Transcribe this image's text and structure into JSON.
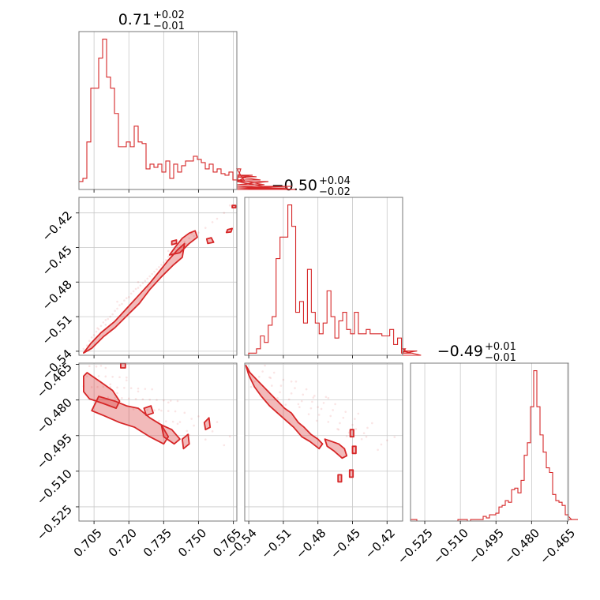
{
  "chart_data": {
    "type": "corner",
    "color": "#d62728",
    "grid": true,
    "parameters": [
      {
        "title_median": "0.71",
        "title_plus": "+0.02",
        "title_minus": "−0.01",
        "range": [
          0.6985,
          0.7665
        ],
        "ticks": [
          0.705,
          0.72,
          0.735,
          0.75,
          0.765
        ],
        "tick_labels": [
          "0.705",
          "0.720",
          "0.735",
          "0.750",
          "0.765"
        ],
        "hist_edges_start": 0.6985,
        "hist_bin_width": 0.0017,
        "hist_counts": [
          5,
          7,
          30,
          64,
          64,
          83,
          95,
          71,
          64,
          48,
          27,
          27,
          30,
          27,
          40,
          30,
          29,
          13,
          16,
          14,
          16,
          11,
          18,
          7,
          16,
          11,
          15,
          18,
          18,
          21,
          19,
          17,
          13,
          16,
          11,
          13,
          10,
          9,
          11,
          6,
          5,
          13,
          5,
          9,
          9,
          8,
          6,
          3,
          5,
          1,
          0,
          1,
          0,
          1,
          2,
          0
        ]
      },
      {
        "title_median": "−0.50",
        "title_plus": "+0.04",
        "title_minus": "−0.02",
        "range": [
          -0.5435,
          -0.4065
        ],
        "ticks": [
          -0.54,
          -0.51,
          -0.48,
          -0.45,
          -0.42
        ],
        "tick_labels": [
          "−0.54",
          "−0.51",
          "−0.48",
          "−0.45",
          "−0.42"
        ],
        "hist_edges_start": -0.5435,
        "hist_bin_width": 0.0034,
        "hist_counts": [
          0,
          1,
          1,
          3,
          9,
          6,
          14,
          18,
          45,
          55,
          55,
          70,
          60,
          20,
          25,
          15,
          40,
          20,
          15,
          10,
          15,
          30,
          18,
          8,
          16,
          20,
          12,
          10,
          20,
          10,
          10,
          12,
          10,
          10,
          10,
          9,
          9,
          12,
          5,
          8,
          1,
          3,
          1,
          1,
          2,
          0
        ]
      },
      {
        "title_median": "−0.49",
        "title_plus": "+0.01",
        "title_minus": "−0.01",
        "range": [
          -0.531,
          -0.4645
        ],
        "ticks": [
          -0.525,
          -0.51,
          -0.495,
          -0.48,
          -0.465
        ],
        "tick_labels": [
          "−0.525",
          "−0.510",
          "−0.495",
          "−0.480",
          "−0.465"
        ],
        "hist_edges_start": -0.531,
        "hist_bin_width": 0.00133,
        "hist_counts": [
          1,
          1,
          0,
          0,
          0,
          0,
          0,
          0,
          0,
          0,
          0,
          0,
          0,
          0,
          0,
          1,
          1,
          1,
          0,
          1,
          1,
          1,
          1,
          3,
          2,
          4,
          4,
          5,
          9,
          10,
          13,
          12,
          20,
          21,
          18,
          26,
          42,
          50,
          73,
          96,
          73,
          55,
          44,
          34,
          31,
          17,
          13,
          12,
          10,
          4,
          3,
          1,
          1,
          1
        ]
      }
    ],
    "scatter_samples": [
      [
        0.7005,
        -0.538
      ],
      [
        0.702,
        -0.535
      ],
      [
        0.703,
        -0.531
      ],
      [
        0.704,
        -0.528
      ],
      [
        0.705,
        -0.526
      ],
      [
        0.706,
        -0.523
      ],
      [
        0.7065,
        -0.52
      ],
      [
        0.707,
        -0.521
      ],
      [
        0.708,
        -0.518
      ],
      [
        0.709,
        -0.515
      ],
      [
        0.71,
        -0.513
      ],
      [
        0.711,
        -0.512
      ],
      [
        0.712,
        -0.51
      ],
      [
        0.713,
        -0.508
      ],
      [
        0.714,
        -0.505
      ],
      [
        0.715,
        -0.503
      ],
      [
        0.716,
        -0.5
      ],
      [
        0.717,
        -0.499
      ],
      [
        0.718,
        -0.496
      ],
      [
        0.719,
        -0.494
      ],
      [
        0.72,
        -0.493
      ],
      [
        0.721,
        -0.49
      ],
      [
        0.722,
        -0.488
      ],
      [
        0.723,
        -0.486
      ],
      [
        0.724,
        -0.485
      ],
      [
        0.725,
        -0.483
      ],
      [
        0.726,
        -0.481
      ],
      [
        0.727,
        -0.479
      ],
      [
        0.728,
        -0.477
      ],
      [
        0.729,
        -0.475
      ],
      [
        0.73,
        -0.473
      ],
      [
        0.731,
        -0.471
      ],
      [
        0.732,
        -0.469
      ],
      [
        0.733,
        -0.467
      ],
      [
        0.734,
        -0.465
      ],
      [
        0.735,
        -0.463
      ],
      [
        0.736,
        -0.461
      ],
      [
        0.737,
        -0.458
      ],
      [
        0.738,
        -0.456
      ],
      [
        0.739,
        -0.455
      ],
      [
        0.74,
        -0.452
      ],
      [
        0.741,
        -0.45
      ],
      [
        0.742,
        -0.448
      ],
      [
        0.744,
        -0.445
      ],
      [
        0.746,
        -0.442
      ],
      [
        0.748,
        -0.44
      ],
      [
        0.75,
        -0.437
      ],
      [
        0.753,
        -0.433
      ],
      [
        0.756,
        -0.428
      ],
      [
        0.758,
        -0.425
      ],
      [
        0.761,
        -0.42
      ],
      [
        0.7635,
        -0.4135
      ],
      [
        0.71,
        -0.517
      ],
      [
        0.715,
        -0.497
      ],
      [
        0.724,
        -0.48
      ],
      [
        0.728,
        -0.484
      ],
      [
        0.733,
        -0.471
      ],
      [
        0.737,
        -0.453
      ],
      [
        0.745,
        -0.447
      ],
      [
        0.712,
        -0.522
      ],
      [
        0.719,
        -0.503
      ],
      [
        0.741,
        -0.462
      ],
      [
        0.747,
        -0.438
      ]
    ],
    "contours_01": [
      [
        [
          0.7005,
          -0.5415
        ],
        [
          0.7035,
          -0.5335
        ],
        [
          0.708,
          -0.524
        ],
        [
          0.714,
          -0.514
        ],
        [
          0.719,
          -0.503
        ],
        [
          0.724,
          -0.492
        ],
        [
          0.729,
          -0.481
        ],
        [
          0.733,
          -0.471
        ],
        [
          0.737,
          -0.461
        ],
        [
          0.741,
          -0.452
        ],
        [
          0.744,
          -0.4465
        ],
        [
          0.743,
          -0.4585
        ],
        [
          0.739,
          -0.4655
        ],
        [
          0.734,
          -0.4755
        ],
        [
          0.729,
          -0.4865
        ],
        [
          0.7245,
          -0.4985
        ],
        [
          0.719,
          -0.5095
        ],
        [
          0.714,
          -0.5195
        ],
        [
          0.709,
          -0.5275
        ],
        [
          0.704,
          -0.5375
        ]
      ],
      [
        [
          0.7375,
          -0.4565
        ],
        [
          0.74,
          -0.4495
        ],
        [
          0.743,
          -0.442
        ],
        [
          0.746,
          -0.4375
        ],
        [
          0.7485,
          -0.4355
        ],
        [
          0.7495,
          -0.441
        ],
        [
          0.746,
          -0.4465
        ],
        [
          0.742,
          -0.4545
        ]
      ],
      [
        [
          0.7535,
          -0.4425
        ],
        [
          0.7555,
          -0.4415
        ],
        [
          0.7565,
          -0.4455
        ],
        [
          0.754,
          -0.4465
        ]
      ],
      [
        [
          0.7385,
          -0.4445
        ],
        [
          0.7405,
          -0.4435
        ],
        [
          0.7405,
          -0.4465
        ],
        [
          0.7385,
          -0.4475
        ]
      ],
      [
        [
          0.7625,
          -0.4345
        ],
        [
          0.7645,
          -0.4335
        ],
        [
          0.764,
          -0.4365
        ],
        [
          0.762,
          -0.437
        ]
      ],
      [
        [
          0.7645,
          -0.4135
        ],
        [
          0.766,
          -0.4135
        ],
        [
          0.766,
          -0.4155
        ],
        [
          0.7645,
          -0.4155
        ]
      ]
    ],
    "contours_02": [
      [
        [
          0.7005,
          -0.47
        ],
        [
          0.702,
          -0.4685
        ],
        [
          0.708,
          -0.4725
        ],
        [
          0.713,
          -0.476
        ],
        [
          0.716,
          -0.4805
        ],
        [
          0.7145,
          -0.4835
        ],
        [
          0.709,
          -0.4815
        ],
        [
          0.703,
          -0.4795
        ],
        [
          0.7005,
          -0.4765
        ]
      ],
      [
        [
          0.707,
          -0.4785
        ],
        [
          0.714,
          -0.4805
        ],
        [
          0.719,
          -0.4825
        ],
        [
          0.724,
          -0.4835
        ],
        [
          0.729,
          -0.4875
        ],
        [
          0.734,
          -0.4905
        ],
        [
          0.737,
          -0.4955
        ],
        [
          0.735,
          -0.4985
        ],
        [
          0.729,
          -0.4955
        ],
        [
          0.7225,
          -0.4915
        ],
        [
          0.716,
          -0.4895
        ],
        [
          0.709,
          -0.4865
        ],
        [
          0.704,
          -0.4845
        ]
      ],
      [
        [
          0.734,
          -0.4905
        ],
        [
          0.7385,
          -0.4925
        ],
        [
          0.742,
          -0.4965
        ],
        [
          0.7395,
          -0.4985
        ],
        [
          0.735,
          -0.4955
        ]
      ],
      [
        [
          0.743,
          -0.4965
        ],
        [
          0.7455,
          -0.4945
        ],
        [
          0.746,
          -0.4985
        ],
        [
          0.7435,
          -0.5005
        ]
      ],
      [
        [
          0.7165,
          -0.4645
        ],
        [
          0.7185,
          -0.4645
        ],
        [
          0.7185,
          -0.4665
        ],
        [
          0.7165,
          -0.4665
        ]
      ],
      [
        [
          0.7525,
          -0.4895
        ],
        [
          0.7545,
          -0.4875
        ],
        [
          0.755,
          -0.4915
        ],
        [
          0.753,
          -0.4925
        ]
      ],
      [
        [
          0.7265,
          -0.4835
        ],
        [
          0.7295,
          -0.4825
        ],
        [
          0.7305,
          -0.4855
        ],
        [
          0.7275,
          -0.4865
        ]
      ]
    ],
    "contours_12": [
      [
        [
          -0.5425,
          -0.4655
        ],
        [
          -0.539,
          -0.4685
        ],
        [
          -0.533,
          -0.4715
        ],
        [
          -0.527,
          -0.4745
        ],
        [
          -0.521,
          -0.4775
        ],
        [
          -0.515,
          -0.4805
        ],
        [
          -0.509,
          -0.4835
        ],
        [
          -0.503,
          -0.4855
        ],
        [
          -0.497,
          -0.4895
        ],
        [
          -0.492,
          -0.4915
        ],
        [
          -0.486,
          -0.4945
        ],
        [
          -0.48,
          -0.4965
        ],
        [
          -0.476,
          -0.4985
        ],
        [
          -0.479,
          -0.5005
        ],
        [
          -0.487,
          -0.4975
        ],
        [
          -0.494,
          -0.4955
        ],
        [
          -0.501,
          -0.4915
        ],
        [
          -0.508,
          -0.4885
        ],
        [
          -0.515,
          -0.4855
        ],
        [
          -0.522,
          -0.4825
        ],
        [
          -0.529,
          -0.4785
        ],
        [
          -0.535,
          -0.4745
        ],
        [
          -0.54,
          -0.4695
        ]
      ],
      [
        [
          -0.474,
          -0.4965
        ],
        [
          -0.468,
          -0.4975
        ],
        [
          -0.462,
          -0.4985
        ],
        [
          -0.457,
          -0.5005
        ],
        [
          -0.455,
          -0.5035
        ],
        [
          -0.459,
          -0.5045
        ],
        [
          -0.466,
          -0.5015
        ],
        [
          -0.472,
          -0.4995
        ]
      ],
      [
        [
          -0.452,
          -0.4925
        ],
        [
          -0.449,
          -0.4925
        ],
        [
          -0.449,
          -0.4955
        ],
        [
          -0.452,
          -0.4955
        ]
      ],
      [
        [
          -0.45,
          -0.4995
        ],
        [
          -0.447,
          -0.4995
        ],
        [
          -0.447,
          -0.5025
        ],
        [
          -0.45,
          -0.5025
        ]
      ],
      [
        [
          -0.4525,
          -0.5095
        ],
        [
          -0.4495,
          -0.5095
        ],
        [
          -0.4495,
          -0.5125
        ],
        [
          -0.4525,
          -0.5125
        ]
      ],
      [
        [
          -0.4625,
          -0.5115
        ],
        [
          -0.4595,
          -0.5115
        ],
        [
          -0.4595,
          -0.5145
        ],
        [
          -0.4625,
          -0.5145
        ]
      ]
    ]
  }
}
